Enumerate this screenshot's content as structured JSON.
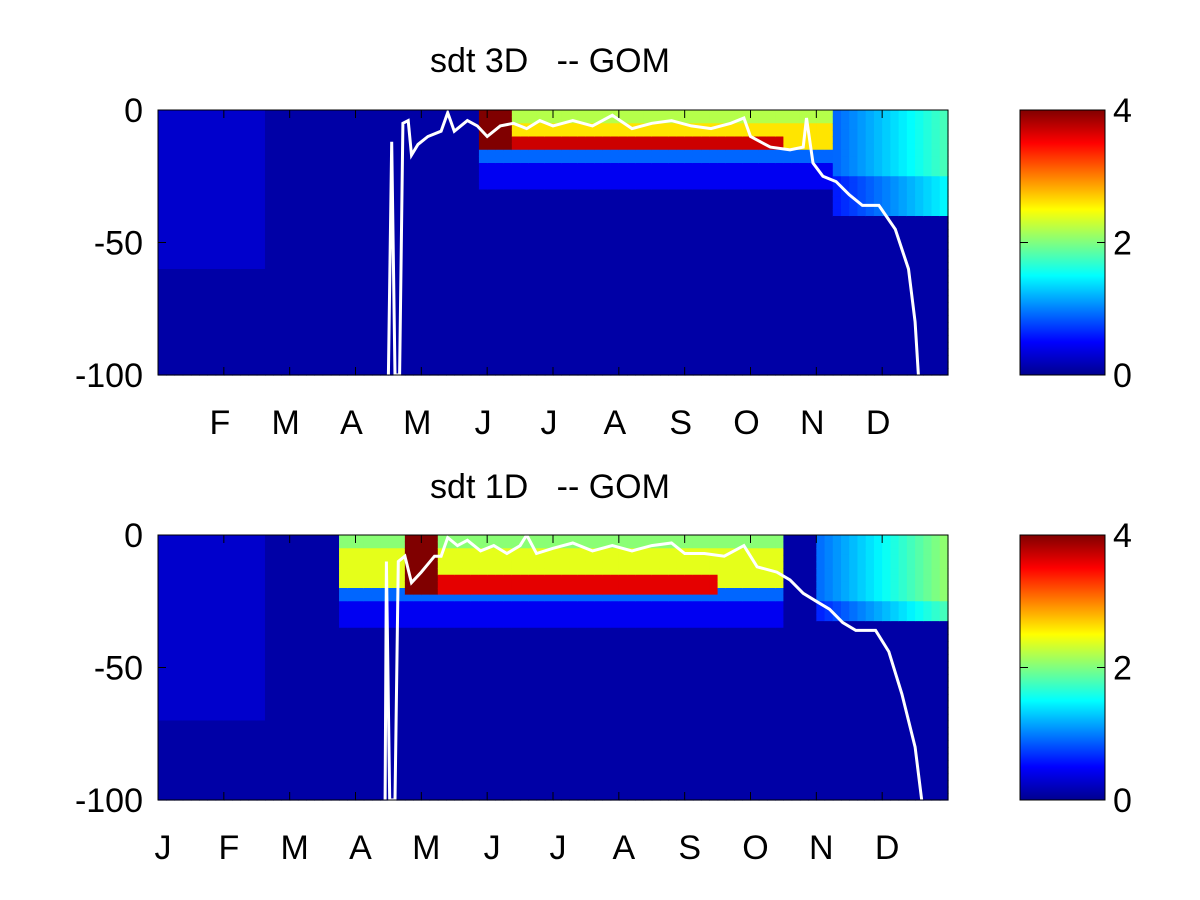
{
  "chart_data": [
    {
      "type": "heatmap",
      "title": "sdt 3D   -- GOM",
      "x_ticks": [
        "F",
        "M",
        "A",
        "M",
        "J",
        "J",
        "A",
        "S",
        "O",
        "N",
        "D"
      ],
      "y_ticks": [
        "0",
        "-50",
        "-100"
      ],
      "ylim": [
        -100,
        0
      ],
      "colorbar": {
        "ticks": [
          "4",
          "2",
          "0"
        ],
        "range": [
          0,
          4
        ],
        "colormap": "jet"
      },
      "field": {
        "background": 0.15,
        "winter_mix": {
          "depth_to": -60,
          "value": 0.3,
          "until_month": 1.6
        },
        "surface_layer": {
          "from_month": 4.85,
          "to_month": 10.3,
          "depth_to": -20,
          "value": 2.6
        },
        "subsurface_max": {
          "from_month": 4.9,
          "to_month": 9.5,
          "depth_from": -10,
          "depth_to": -16,
          "value": 3.7
        },
        "early_peak": {
          "from_month": 4.9,
          "to_month": 5.4,
          "value": 4.0
        },
        "autumn_mix": {
          "from_month": 10.3,
          "to_month": 12,
          "depth_to": -40,
          "value": 1.5
        }
      },
      "mld_line": {
        "color": "#ffffff",
        "points": [
          [
            3.5,
            -100
          ],
          [
            3.55,
            -12
          ],
          [
            3.6,
            -100
          ],
          [
            3.67,
            -100
          ],
          [
            3.72,
            -5
          ],
          [
            3.8,
            -4
          ],
          [
            3.85,
            -17
          ],
          [
            3.95,
            -13
          ],
          [
            4.1,
            -10
          ],
          [
            4.3,
            -8
          ],
          [
            4.4,
            -1
          ],
          [
            4.5,
            -8
          ],
          [
            4.7,
            -4
          ],
          [
            4.85,
            -6
          ],
          [
            5.0,
            -10
          ],
          [
            5.2,
            -6
          ],
          [
            5.4,
            -5
          ],
          [
            5.6,
            -7
          ],
          [
            5.8,
            -4
          ],
          [
            6.0,
            -6
          ],
          [
            6.3,
            -4
          ],
          [
            6.6,
            -6
          ],
          [
            6.9,
            -2
          ],
          [
            7.2,
            -7
          ],
          [
            7.5,
            -5
          ],
          [
            7.8,
            -4
          ],
          [
            8.1,
            -6
          ],
          [
            8.4,
            -7
          ],
          [
            8.7,
            -5
          ],
          [
            8.9,
            -3
          ],
          [
            9.0,
            -10
          ],
          [
            9.3,
            -14
          ],
          [
            9.6,
            -15
          ],
          [
            9.8,
            -14
          ],
          [
            9.85,
            -3
          ],
          [
            9.95,
            -20
          ],
          [
            10.1,
            -25
          ],
          [
            10.3,
            -27
          ],
          [
            10.5,
            -32
          ],
          [
            10.7,
            -36
          ],
          [
            10.95,
            -36
          ],
          [
            11.2,
            -45
          ],
          [
            11.4,
            -60
          ],
          [
            11.5,
            -80
          ],
          [
            11.55,
            -100
          ]
        ]
      }
    },
    {
      "type": "heatmap",
      "title": "sdt 1D   -- GOM",
      "x_ticks": [
        "J",
        "F",
        "M",
        "A",
        "M",
        "J",
        "J",
        "A",
        "S",
        "O",
        "N",
        "D"
      ],
      "y_ticks": [
        "0",
        "-50",
        "-100"
      ],
      "ylim": [
        -100,
        0
      ],
      "colorbar": {
        "ticks": [
          "4",
          "2",
          "0"
        ],
        "range": [
          0,
          4
        ],
        "colormap": "jet"
      },
      "field": {
        "background": 0.15,
        "winter_mix": {
          "depth_to": -70,
          "value": 0.3,
          "until_month": 1.6
        },
        "surface_layer": {
          "from_month": 2.8,
          "to_month": 9.5,
          "depth_to": -25,
          "value": 2.4
        },
        "subsurface_max": {
          "from_month": 4.2,
          "to_month": 8.5,
          "depth_from": -15,
          "depth_to": -22,
          "value": 3.6
        },
        "early_peak": {
          "from_month": 3.7,
          "to_month": 4.2,
          "value": 4.0
        },
        "autumn_mix": {
          "from_month": 10.0,
          "to_month": 12,
          "depth_to": -32,
          "value": 1.8
        }
      },
      "mld_line": {
        "color": "#ffffff",
        "points": [
          [
            3.45,
            -100
          ],
          [
            3.47,
            -10
          ],
          [
            3.52,
            -100
          ],
          [
            3.6,
            -100
          ],
          [
            3.65,
            -10
          ],
          [
            3.75,
            -8
          ],
          [
            3.85,
            -18
          ],
          [
            4.0,
            -14
          ],
          [
            4.2,
            -8
          ],
          [
            4.3,
            -8
          ],
          [
            4.4,
            -1
          ],
          [
            4.55,
            -4
          ],
          [
            4.7,
            -2
          ],
          [
            4.9,
            -6
          ],
          [
            5.1,
            -4
          ],
          [
            5.3,
            -7
          ],
          [
            5.5,
            -4
          ],
          [
            5.6,
            0
          ],
          [
            5.75,
            -7
          ],
          [
            6.0,
            -5
          ],
          [
            6.3,
            -3
          ],
          [
            6.6,
            -6
          ],
          [
            6.9,
            -4
          ],
          [
            7.2,
            -6
          ],
          [
            7.5,
            -4
          ],
          [
            7.8,
            -3
          ],
          [
            8.0,
            -7
          ],
          [
            8.3,
            -7
          ],
          [
            8.6,
            -8
          ],
          [
            8.9,
            -4
          ],
          [
            9.1,
            -12
          ],
          [
            9.4,
            -14
          ],
          [
            9.6,
            -17
          ],
          [
            9.8,
            -22
          ],
          [
            10.0,
            -25
          ],
          [
            10.2,
            -28
          ],
          [
            10.4,
            -33
          ],
          [
            10.6,
            -36
          ],
          [
            10.9,
            -36
          ],
          [
            11.1,
            -44
          ],
          [
            11.3,
            -60
          ],
          [
            11.5,
            -80
          ],
          [
            11.6,
            -100
          ]
        ]
      }
    }
  ]
}
